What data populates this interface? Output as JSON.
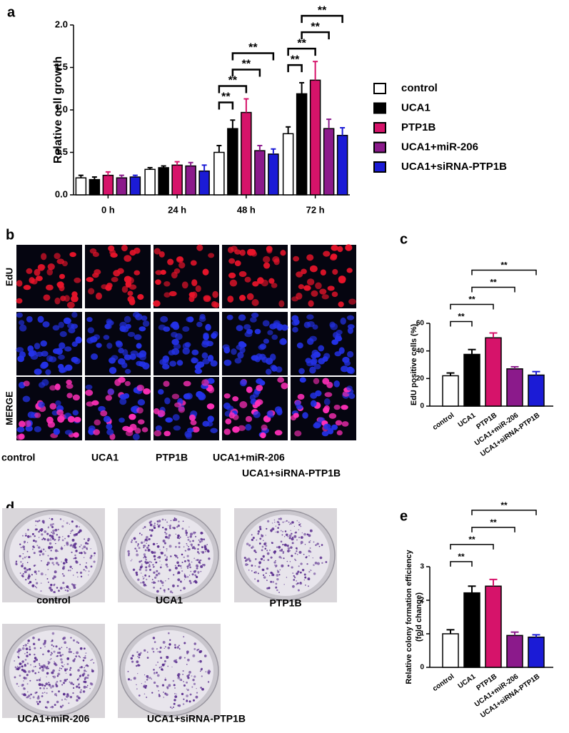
{
  "figure": {
    "panel_labels": [
      "a",
      "b",
      "c",
      "d",
      "e"
    ],
    "edu_panel": {
      "row_labels": [
        "EdU",
        "MERGE"
      ],
      "column_labels": [
        "control",
        "UCA1",
        "PTP1B",
        "UCA1+miR-206",
        "UCA1+siRNA-PTP1B"
      ]
    },
    "colony_panel": {
      "labels": [
        "control",
        "UCA1",
        "PTP1B",
        "UCA1+miR-206",
        "UCA1+siRNA-PTP1B"
      ]
    }
  },
  "chart_data": [
    {
      "type": "bar",
      "y_label": [
        "Relative cell growth"
      ],
      "categories": [
        "0 h",
        "24 h",
        "48 h",
        "72 h"
      ],
      "series": [
        {
          "name": "control",
          "color": "#ffffff",
          "values": [
            0.2,
            0.3,
            0.5,
            0.72
          ],
          "errors": [
            0.03,
            0.02,
            0.08,
            0.08
          ]
        },
        {
          "name": "UCA1",
          "color": "#000000",
          "values": [
            0.18,
            0.32,
            0.78,
            1.19
          ],
          "errors": [
            0.03,
            0.02,
            0.1,
            0.13
          ]
        },
        {
          "name": "PTP1B",
          "color": "#d6136a",
          "values": [
            0.23,
            0.35,
            0.97,
            1.35
          ],
          "errors": [
            0.04,
            0.04,
            0.16,
            0.22
          ]
        },
        {
          "name": "UCA1+miR-206",
          "color": "#8b1a8b",
          "values": [
            0.2,
            0.34,
            0.52,
            0.78
          ],
          "errors": [
            0.03,
            0.04,
            0.06,
            0.11
          ]
        },
        {
          "name": "UCA1+siRNA-PTP1B",
          "color": "#1b1bd6",
          "values": [
            0.21,
            0.28,
            0.48,
            0.7
          ],
          "errors": [
            0.02,
            0.07,
            0.06,
            0.09
          ]
        }
      ],
      "ylim": [
        0,
        2.0
      ],
      "yticks": [
        {
          "value": 0,
          "label": "0.0"
        },
        0.5,
        {
          "value": 1,
          "label": "1.0"
        },
        1.5,
        {
          "value": 2,
          "label": "2.0"
        }
      ],
      "legend": "right",
      "annotations": [
        {
          "text": "**",
          "category": "48 h",
          "between": [
            "control",
            "UCA1"
          ]
        },
        {
          "text": "**",
          "category": "48 h",
          "between": [
            "control",
            "PTP1B"
          ]
        },
        {
          "text": "**",
          "category": "48 h",
          "between": [
            "UCA1",
            "UCA1+miR-206"
          ]
        },
        {
          "text": "**",
          "category": "48 h",
          "between": [
            "UCA1",
            "UCA1+siRNA-PTP1B"
          ]
        },
        {
          "text": "**",
          "category": "72 h",
          "between": [
            "control",
            "UCA1"
          ]
        },
        {
          "text": "**",
          "category": "72 h",
          "between": [
            "control",
            "PTP1B"
          ]
        },
        {
          "text": "**",
          "category": "72 h",
          "between": [
            "UCA1",
            "UCA1+miR-206"
          ]
        },
        {
          "text": "**",
          "category": "72 h",
          "between": [
            "UCA1",
            "UCA1+siRNA-PTP1B"
          ]
        }
      ]
    },
    {
      "type": "bar",
      "y_label": [
        "EdU positive cells (%)"
      ],
      "categories": [
        "control",
        "UCA1",
        "PTP1B",
        "UCA1+miR-206",
        "UCA1+siRNA-PTP1B"
      ],
      "values": [
        22,
        37.5,
        49.5,
        27,
        22.5
      ],
      "errors": [
        2,
        3.5,
        3.5,
        1.5,
        2.5
      ],
      "colors": [
        "#ffffff",
        "#000000",
        "#d6136a",
        "#8b1a8b",
        "#1b1bd6"
      ],
      "ylim": [
        0,
        60
      ],
      "yticks": [
        0,
        20,
        40,
        60
      ],
      "annotations": [
        {
          "text": "**",
          "between": [
            "control",
            "UCA1"
          ]
        },
        {
          "text": "**",
          "between": [
            "control",
            "PTP1B"
          ]
        },
        {
          "text": "**",
          "between": [
            "UCA1",
            "UCA1+miR-206"
          ]
        },
        {
          "text": "**",
          "between": [
            "UCA1",
            "UCA1+siRNA-PTP1B"
          ]
        }
      ]
    },
    {
      "type": "bar",
      "y_label": [
        "Relative colony formation efficiency",
        "(fold change)"
      ],
      "categories": [
        "control",
        "UCA1",
        "PTP1B",
        "UCA1+miR-206",
        "UCA1+siRNA-PTP1B"
      ],
      "values": [
        1.0,
        2.22,
        2.42,
        0.95,
        0.9
      ],
      "errors": [
        0.12,
        0.2,
        0.2,
        0.1,
        0.07
      ],
      "colors": [
        "#ffffff",
        "#000000",
        "#d6136a",
        "#8b1a8b",
        "#1b1bd6"
      ],
      "ylim": [
        0,
        3
      ],
      "yticks": [
        0,
        1,
        2,
        3
      ],
      "annotations": [
        {
          "text": "**",
          "between": [
            "control",
            "UCA1"
          ]
        },
        {
          "text": "**",
          "between": [
            "control",
            "PTP1B"
          ]
        },
        {
          "text": "**",
          "between": [
            "UCA1",
            "UCA1+miR-206"
          ]
        },
        {
          "text": "**",
          "between": [
            "UCA1",
            "UCA1+siRNA-PTP1B"
          ]
        }
      ]
    }
  ]
}
